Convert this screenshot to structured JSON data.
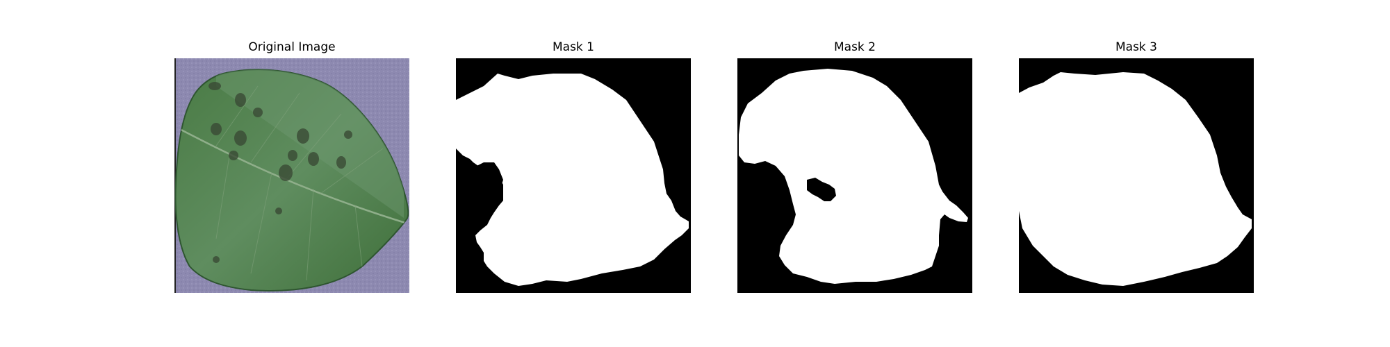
{
  "figure": {
    "panels": [
      {
        "title": "Original Image"
      },
      {
        "title": "Mask 1"
      },
      {
        "title": "Mask 2"
      },
      {
        "title": "Mask 3"
      }
    ]
  },
  "colors": {
    "background_card": "#8f8ab3",
    "leaf": "#4e7e4a",
    "mask_foreground": "#ffffff",
    "mask_background": "#000000"
  }
}
